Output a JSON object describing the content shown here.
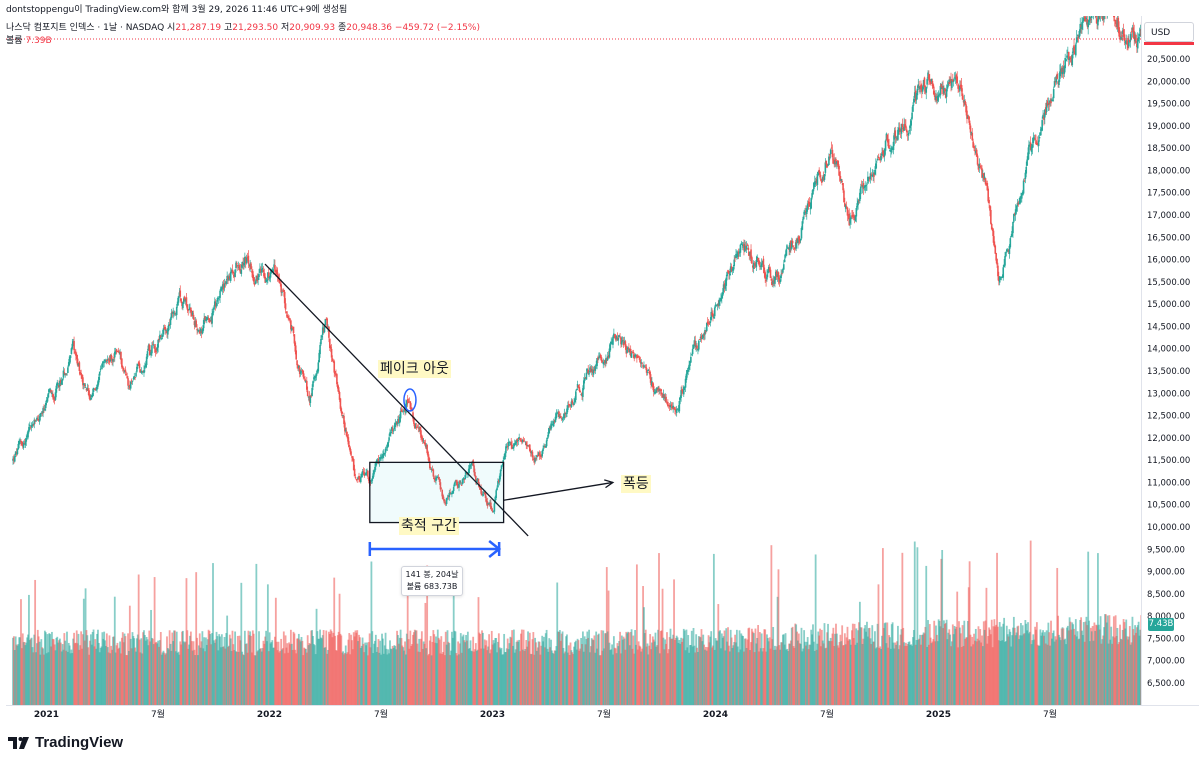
{
  "header": {
    "author_line": "dontstoppengu이 TradingView.com와 함께 3월 29, 2026 11:46 UTC+9에 생성됨",
    "symbol": "나스닥 컴포지트 인덱스 · 1날 · NASDAQ",
    "open_label": "시",
    "open_value": "21,287.19",
    "high_label": "고",
    "high_value": "21,293.50",
    "low_label": "저",
    "low_value": "20,909.93",
    "close_label": "종",
    "close_value": "20,948.36",
    "change": "−459.72 (−2.15%)",
    "volume_label": "볼륨",
    "volume_value": "7.39B"
  },
  "currency": "USD",
  "volume_badge": "7.43B",
  "brand": "TradingView",
  "colors": {
    "up": "#26a69a",
    "down": "#ef5350",
    "annotation_bg": "#fff9c4",
    "range_arrow": "#2962ff",
    "last_price_line": "#f23645"
  },
  "annotations": {
    "fakeout": "페이크 아웃",
    "accumulation": "축적 구간",
    "surge": "폭등",
    "range_bars": "141 봉, 204날",
    "range_volume": "볼륨 683.73B"
  },
  "chart_data": {
    "type": "candlestick",
    "title": "",
    "x_range": [
      "2020-11",
      "2026-03"
    ],
    "ylim": [
      6200,
      20850
    ],
    "y_ticks": [
      20500,
      20000,
      19500,
      19000,
      18500,
      18000,
      17500,
      17000,
      16500,
      16000,
      15500,
      15000,
      14500,
      14000,
      13500,
      13000,
      12500,
      12000,
      11500,
      11000,
      10500,
      10000,
      9500,
      9000,
      8500,
      8000,
      7500,
      7000,
      6500
    ],
    "y_tick_labels": [
      "20,500.00",
      "20,000.00",
      "19,500.00",
      "19,000.00",
      "18,500.00",
      "18,000.00",
      "17,500.00",
      "17,000.00",
      "16,500.00",
      "16,000.00",
      "15,500.00",
      "15,000.00",
      "14,500.00",
      "14,000.00",
      "13,500.00",
      "13,000.00",
      "12,500.00",
      "12,000.00",
      "11,500.00",
      "11,000.00",
      "10,500.00",
      "10,000.00",
      "9,500.00",
      "9,000.00",
      "8,500.00",
      "8,000.00",
      "7,500.00",
      "7,000.00",
      "6,500.00"
    ],
    "x_ticks": [
      {
        "t": 2021.0,
        "label": "2021",
        "bold": true
      },
      {
        "t": 2021.5,
        "label": "7월",
        "bold": false
      },
      {
        "t": 2022.0,
        "label": "2022",
        "bold": true
      },
      {
        "t": 2022.5,
        "label": "7월",
        "bold": false
      },
      {
        "t": 2023.0,
        "label": "2023",
        "bold": true
      },
      {
        "t": 2023.5,
        "label": "7월",
        "bold": false
      },
      {
        "t": 2024.0,
        "label": "2024",
        "bold": true
      },
      {
        "t": 2024.5,
        "label": "7월",
        "bold": false
      },
      {
        "t": 2025.0,
        "label": "2025",
        "bold": true
      },
      {
        "t": 2025.5,
        "label": "7월",
        "bold": false
      }
    ],
    "price_path": [
      [
        2020.85,
        11500
      ],
      [
        2021.03,
        12900
      ],
      [
        2021.12,
        14000
      ],
      [
        2021.2,
        12900
      ],
      [
        2021.32,
        14000
      ],
      [
        2021.37,
        13200
      ],
      [
        2021.62,
        15100
      ],
      [
        2021.7,
        14500
      ],
      [
        2021.88,
        16000
      ],
      [
        2021.98,
        15600
      ],
      [
        2022.02,
        15900
      ],
      [
        2022.12,
        13900
      ],
      [
        2022.18,
        12800
      ],
      [
        2022.25,
        14500
      ],
      [
        2022.38,
        11200
      ],
      [
        2022.46,
        10900
      ],
      [
        2022.62,
        12850
      ],
      [
        2022.78,
        10600
      ],
      [
        2022.9,
        11400
      ],
      [
        2023.0,
        10400
      ],
      [
        2023.08,
        12000
      ],
      [
        2023.2,
        11500
      ],
      [
        2023.34,
        12800
      ],
      [
        2023.55,
        14300
      ],
      [
        2023.82,
        12600
      ],
      [
        2023.97,
        14800
      ],
      [
        2024.12,
        16200
      ],
      [
        2024.3,
        15600
      ],
      [
        2024.52,
        18600
      ],
      [
        2024.6,
        16800
      ],
      [
        2024.72,
        18200
      ],
      [
        2024.97,
        20000
      ],
      [
        2025.12,
        19700
      ],
      [
        2025.22,
        17500
      ],
      [
        2025.27,
        15300
      ],
      [
        2025.38,
        17800
      ],
      [
        2025.47,
        19200
      ],
      [
        2025.55,
        20300
      ],
      [
        2025.72,
        21500
      ],
      [
        2025.8,
        21500
      ],
      [
        2025.85,
        21000
      ],
      [
        2025.95,
        20800
      ]
    ],
    "annotation_lines": {
      "downtrend": [
        [
          2021.98,
          15900
        ],
        [
          2023.16,
          9800
        ]
      ],
      "accumulation_box": {
        "t0": 2022.45,
        "t1": 2023.05,
        "y0": 10100,
        "y1": 11450
      },
      "breakout_arrow": [
        [
          2023.05,
          10600
        ],
        [
          2023.54,
          11000
        ]
      ],
      "fakeout_marker": [
        2022.63,
        12850
      ],
      "range_arrow": {
        "t0": 2022.45,
        "t1": 2023.03
      }
    }
  }
}
